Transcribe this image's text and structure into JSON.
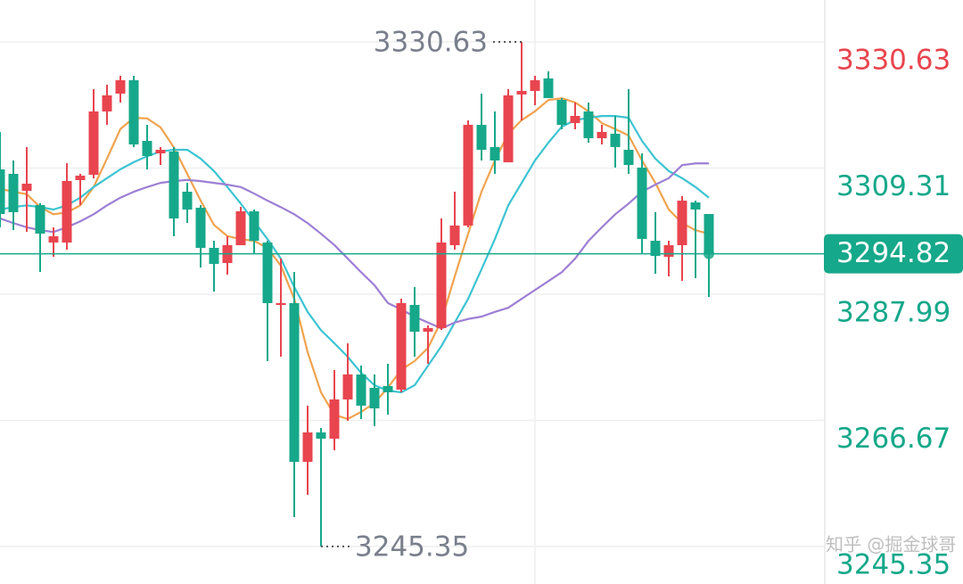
{
  "chart_data": {
    "type": "candlestick",
    "up_color": "#e8454f",
    "down_color": "#16a88a",
    "grid": true,
    "ylim": [
      3239.01,
      3337.71
    ],
    "yticks": [
      3330.63,
      3309.31,
      3287.99,
      3266.67,
      3245.35
    ],
    "watermark": "知乎 @掘金球哥",
    "open": [
      3309.08,
      3308.33,
      3305.46,
      3303.05,
      3296.72,
      3296.72,
      3307.27,
      3308.17,
      3318.87,
      3321.89,
      3324.15,
      3313.9,
      3311.79,
      3312.09,
      3305.31,
      3302.6,
      3295.82,
      3293.26,
      3296.27,
      3302.0,
      3296.72,
      3286.17,
      3286.48,
      3259.65,
      3264.63,
      3263.57,
      3270.2,
      3274.42,
      3272.16,
      3272.46,
      3271.86,
      3286.17,
      3281.65,
      3282.26,
      3296.27,
      3299.59,
      3316.61,
      3312.85,
      3310.28,
      3321.74,
      3322.34,
      3324.45,
      3320.83,
      3316.91,
      3318.87,
      3314.35,
      3315.11,
      3312.39,
      3309.38,
      3297.02,
      3294.31,
      3296.27,
      3303.5,
      3301.54
    ],
    "high": [
      3315.41,
      3310.59,
      3312.85,
      3303.35,
      3299.28,
      3310.13,
      3308.33,
      3322.64,
      3323.39,
      3324.9,
      3324.9,
      3316.61,
      3312.85,
      3312.85,
      3306.82,
      3303.05,
      3297.02,
      3297.78,
      3302.75,
      3302.3,
      3297.02,
      3294.01,
      3291.75,
      3269.15,
      3265.38,
      3275.17,
      3279.69,
      3275.93,
      3274.42,
      3276.23,
      3287.23,
      3289.19,
      3282.71,
      3300.79,
      3305.31,
      3317.37,
      3321.89,
      3318.87,
      3322.64,
      3330.63,
      3324.9,
      3325.65,
      3321.13,
      3320.38,
      3320.38,
      3316.61,
      3318.12,
      3322.64,
      3311.79,
      3301.85,
      3297.02,
      3304.56,
      3303.8,
      3301.54
    ],
    "low": [
      3299.28,
      3298.83,
      3298.53,
      3291.75,
      3294.31,
      3295.52,
      3303.05,
      3307.57,
      3316.61,
      3320.38,
      3312.85,
      3309.08,
      3309.83,
      3297.78,
      3300.04,
      3292.5,
      3288.43,
      3291.3,
      3296.27,
      3294.76,
      3276.68,
      3277.43,
      3250.31,
      3254.08,
      3245.35,
      3261.61,
      3266.58,
      3266.89,
      3265.68,
      3267.64,
      3271.41,
      3277.43,
      3276.23,
      3281.95,
      3295.52,
      3299.28,
      3310.59,
      3308.33,
      3310.28,
      3317.37,
      3319.93,
      3321.13,
      3315.86,
      3315.86,
      3313.6,
      3313.3,
      3309.38,
      3308.33,
      3294.76,
      3291.45,
      3291.0,
      3290.24,
      3290.69,
      3287.53
    ],
    "close": [
      3301.54,
      3301.85,
      3306.67,
      3298.23,
      3297.78,
      3307.12,
      3308.02,
      3318.87,
      3321.59,
      3324.15,
      3313.3,
      3311.34,
      3312.39,
      3300.79,
      3302.3,
      3295.82,
      3293.11,
      3296.27,
      3302.0,
      3297.02,
      3286.48,
      3286.48,
      3259.65,
      3264.63,
      3263.57,
      3270.2,
      3274.42,
      3269.15,
      3268.69,
      3271.41,
      3286.48,
      3281.65,
      3282.26,
      3296.72,
      3299.59,
      3316.61,
      3312.39,
      3310.59,
      3321.59,
      3322.34,
      3324.15,
      3321.13,
      3316.61,
      3318.12,
      3314.35,
      3315.41,
      3312.85,
      3309.83,
      3297.33,
      3294.46,
      3296.27,
      3303.8,
      3302.3,
      3294.82
    ],
    "ma_lines": [
      {
        "color": "#f0a34e",
        "values": [
          3305.8,
          3305.3,
          3304.9,
          3302.7,
          3301.5,
          3301.8,
          3303.0,
          3306.1,
          3310.9,
          3315.9,
          3317.8,
          3317.7,
          3316.2,
          3312.8,
          3308.3,
          3303.8,
          3299.7,
          3297.8,
          3297.3,
          3297.0,
          3295.8,
          3292.8,
          3287.2,
          3278.2,
          3271.4,
          3267.6,
          3266.9,
          3268.1,
          3269.6,
          3272.2,
          3275.2,
          3276.7,
          3278.9,
          3283.5,
          3291.0,
          3298.2,
          3305.3,
          3310.6,
          3315.1,
          3317.4,
          3318.9,
          3320.8,
          3321.1,
          3320.4,
          3318.9,
          3316.9,
          3315.9,
          3314.8,
          3310.6,
          3306.8,
          3302.3,
          3300.0,
          3298.8,
          3298.2
        ]
      },
      {
        "color": "#3cc4d2",
        "values": [
          3302.3,
          3302.7,
          3303.0,
          3302.7,
          3302.3,
          3303.0,
          3304.3,
          3306.1,
          3307.6,
          3309.1,
          3310.3,
          3311.3,
          3312.1,
          3312.4,
          3312.4,
          3310.9,
          3308.8,
          3306.1,
          3303.3,
          3300.3,
          3297.3,
          3294.0,
          3289.2,
          3285.0,
          3281.9,
          3279.7,
          3277.4,
          3274.7,
          3272.6,
          3271.7,
          3271.4,
          3272.6,
          3275.9,
          3279.2,
          3283.2,
          3287.2,
          3292.2,
          3297.3,
          3303.0,
          3306.8,
          3310.6,
          3313.6,
          3316.3,
          3317.4,
          3317.8,
          3318.1,
          3318.1,
          3317.8,
          3313.9,
          3310.9,
          3308.8,
          3307.6,
          3306.1,
          3304.3
        ]
      },
      {
        "color": "#9d7fd4",
        "values": [
          3300.8,
          3300.0,
          3299.3,
          3298.8,
          3298.5,
          3299.3,
          3300.3,
          3301.5,
          3303.0,
          3304.3,
          3305.3,
          3306.1,
          3306.8,
          3307.1,
          3307.3,
          3307.1,
          3306.8,
          3306.5,
          3306.1,
          3305.0,
          3303.8,
          3302.7,
          3301.5,
          3300.0,
          3298.2,
          3296.3,
          3294.0,
          3291.7,
          3289.5,
          3286.5,
          3285.4,
          3284.2,
          3283.2,
          3282.2,
          3283.2,
          3283.8,
          3284.2,
          3285.0,
          3285.7,
          3287.2,
          3288.7,
          3290.2,
          3291.7,
          3294.0,
          3297.0,
          3299.3,
          3301.5,
          3303.3,
          3305.3,
          3306.5,
          3307.6,
          3309.8,
          3310.1,
          3310.1
        ]
      }
    ]
  }
}
